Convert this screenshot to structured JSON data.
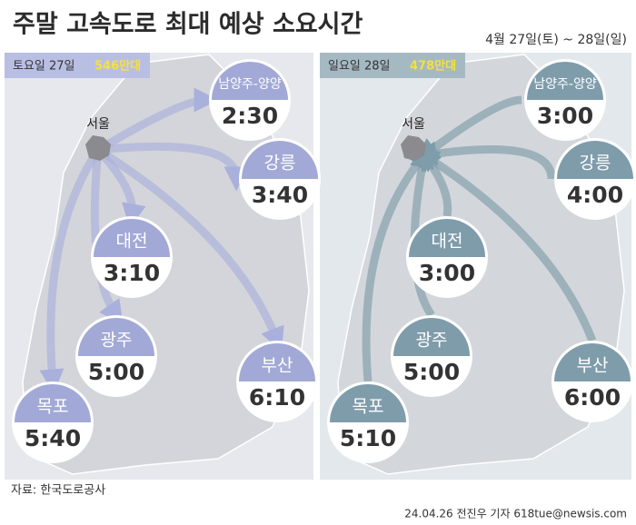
{
  "header": {
    "title": "주말 고속도로 최대 예상 소요시간",
    "date": "4월 27일(토) ~ 28일(일)"
  },
  "panels": [
    {
      "day": "토요일 27일",
      "volume": "546만대",
      "origin": "서울",
      "destinations": [
        {
          "name": "남양주-양양",
          "time": "2:30"
        },
        {
          "name": "강릉",
          "time": "3:40"
        },
        {
          "name": "대전",
          "time": "3:10"
        },
        {
          "name": "광주",
          "time": "5:00"
        },
        {
          "name": "부산",
          "time": "6:10"
        },
        {
          "name": "목포",
          "time": "5:40"
        }
      ]
    },
    {
      "day": "일요일 28일",
      "volume": "478만대",
      "origin": "서울",
      "destinations": [
        {
          "name": "남양주-양양",
          "time": "3:00"
        },
        {
          "name": "강릉",
          "time": "4:00"
        },
        {
          "name": "대전",
          "time": "3:00"
        },
        {
          "name": "광주",
          "time": "5:00"
        },
        {
          "name": "부산",
          "time": "6:00"
        },
        {
          "name": "목포",
          "time": "5:10"
        }
      ]
    }
  ],
  "footer": {
    "source": "자료: 한국도로공사",
    "credit": "24.04.26 전진우 기자 618tue@newsis.com"
  }
}
